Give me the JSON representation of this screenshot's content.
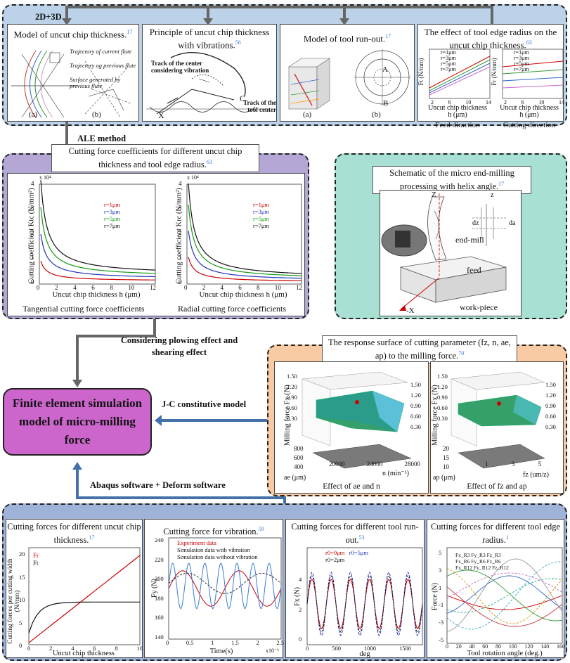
{
  "top_label": "2D+3D",
  "top_panels": [
    {
      "title": "Model of uncut chip thickness.",
      "ref": "17"
    },
    {
      "title": "Principle of uncut  chip thickness with vibrations.",
      "ref": "56"
    },
    {
      "title": "Model of tool run-out.",
      "ref": "17"
    },
    {
      "title": "The effect of tool edge radius on the  uncut chip thickness.",
      "ref": "63"
    }
  ],
  "p1": {
    "leg1": "Trajectory of current flute",
    "leg2": "Trajectory og previous flute",
    "leg3": "Surface generated by previous flute",
    "sub_a": "(a)",
    "sub_b": "(b)"
  },
  "p2": {
    "track_vib": "Track of the center considering vibration",
    "track_center": "Track of the tool center",
    "label_c": "C",
    "label_x": "X"
  },
  "p3": {
    "sub_a": "(a)",
    "sub_b": "(b)",
    "label_A": "A",
    "label_B": "B"
  },
  "p4": {
    "legend": [
      "r=1μm",
      "r=3μm",
      "r=5μm",
      "r=7μm"
    ],
    "ylabel1": "Ft (N/mm)",
    "ylabel2": "Fr (N/mm)",
    "xticks": [
      "2",
      "6",
      "10",
      "14"
    ],
    "xlabel": "Uncut chip thickness",
    "xlabel2": "h (μm)",
    "cap1": "Feed diraction",
    "cap2": "Cutting direction"
  },
  "ale_label": "ALE method",
  "coef": {
    "title": "Cutting force coefficients for different uncut chip thickness and tool edge radius.",
    "ref": "63",
    "left": {
      "ylabel": "Cutting coefficient Ktc (N/mm²)",
      "xlabel": "Uncut chip thickness h (μm)",
      "exp": "x 10⁴",
      "yticks": [
        "0",
        "1",
        "2",
        "3",
        "4"
      ],
      "xticks": [
        "0",
        "2",
        "4",
        "6",
        "8",
        "10",
        "12"
      ],
      "legend": [
        "r=1μm",
        "r=3μm",
        "r=5μm",
        "r=7μm"
      ],
      "cap": "Tangential cutting force coefficients"
    },
    "right": {
      "ylabel": "Cutting coefficient Krc (N/mm²)",
      "xlabel": "Uncut chip thickness h (μm)",
      "exp": "x 10⁴",
      "yticks": [
        "0",
        "1",
        "2",
        "3",
        "4"
      ],
      "xticks": [
        "0",
        "2",
        "4",
        "6",
        "8",
        "10",
        "12"
      ],
      "legend": [
        "r=1μm",
        "r=3μm",
        "r=5μm",
        "r=7μm"
      ],
      "cap": "Radial cutting force coefficients"
    }
  },
  "helix": {
    "title": "Schematic of the micro end-milling processing with helix angle.",
    "ref": "17",
    "z": "Z",
    "z2": "z",
    "dz": "dz",
    "da": "da",
    "endmill": "end-mill",
    "feed": "feed",
    "workpiece": "work-piece",
    "negx": "-X"
  },
  "plow_label": "Considering plowing effect and shearing effect",
  "response": {
    "title": "The response surface of cutting parameter (fz, n, ae, ap) to the milling force.",
    "ref": "70",
    "left": {
      "zlabel": "Milling force Fx (N)",
      "zticks": [
        "1.50",
        "1.20",
        "0.90",
        "0.60",
        "0.30"
      ],
      "zticks_r": [
        "1.50",
        "1.20",
        "0.90",
        "0.60",
        "0.30"
      ],
      "ae_label": "ae (μm)",
      "ae_ticks": [
        "800",
        "600",
        "400"
      ],
      "n_label": "n (min⁻¹)",
      "n_ticks": [
        "20000",
        "24000",
        "28000"
      ],
      "cap": "Effect of ae and n"
    },
    "right": {
      "zlabel": "Milling force Fx (N)",
      "zticks": [
        "1.50",
        "1.20",
        "0.90",
        "0.60",
        "0.30"
      ],
      "zticks_r": [
        "1.50",
        "1.20",
        "0.90",
        "0.60",
        "0.30"
      ],
      "ap_label": "ap (μm)",
      "ap_ticks": [
        "20",
        "15",
        "10"
      ],
      "fz_label": "fz (um/z)",
      "fz_ticks": [
        "1",
        "3",
        "5"
      ],
      "cap": "Effect of fz and ap"
    }
  },
  "jc_label": "J-C constitutive model",
  "center_box": "Finite element simulation model of micro-milling force",
  "abaqus_label": "Abaqus software + Deform software",
  "bottom_panels": [
    {
      "title": "Cutting forces  for different uncut chip thickness.",
      "ref": "17"
    },
    {
      "title": "Cutting force  for vibration.",
      "ref": "59"
    },
    {
      "title": "Cutting forces  for different tool run-out.",
      "ref": "53"
    },
    {
      "title": "Cutting forces  for different tool edge radius.",
      "ref": "1"
    }
  ],
  "b1": {
    "ylabel": "Cutting forces per cutting width (N/mm)",
    "xlabel": "Uncut chip thickness",
    "yticks": [
      "0",
      "5",
      "10",
      "15",
      "20"
    ],
    "xticks": [
      "0",
      "2",
      "4",
      "6",
      "8",
      "10"
    ],
    "legend": [
      "Fr",
      "Ft"
    ]
  },
  "b2": {
    "ylabel": "Fy (N)",
    "xlabel": "Time(s)",
    "yticks": [
      "140",
      "160",
      "180",
      "200",
      "220",
      "240"
    ],
    "xticks": [
      "0",
      "0.5",
      "1",
      "1.5",
      "2",
      "2.5"
    ],
    "exp": "x10⁻³",
    "legend": [
      "Experiment data",
      "Simulation data with vibration",
      "Simulation data without vibration"
    ]
  },
  "b3": {
    "ylabel": "Fx (N)",
    "xlabel": "deg",
    "yticks": [
      "0",
      "2",
      "4"
    ],
    "xticks": [
      "0",
      "500",
      "1000",
      "1500"
    ],
    "legend": [
      "r0=0μm",
      "r0=5μm",
      "r0=2μm"
    ]
  },
  "b4": {
    "ylabel": "Force (N)",
    "xlabel": "Tool rotation angle (deg.)",
    "yticks": [
      "5",
      "3",
      "1",
      "-1",
      "-3",
      "-5"
    ],
    "xticks": [
      "0",
      "20",
      "40",
      "60",
      "80",
      "100",
      "120",
      "140",
      "160"
    ],
    "legend": [
      "Fx_R3",
      "Fy_R3",
      "Fz_R3",
      "Fx_R6",
      "Fy_R6",
      "Fz_R6",
      "Fx_R12",
      "Fy_R12",
      "Fz_R12"
    ]
  },
  "colors": {
    "blue_bg": "#bcd2e8",
    "purple_bg": "#b4a7d6",
    "teal_bg": "#a8e0d4",
    "orange_bg": "#f8cba4",
    "magenta_box": "#cc66cc",
    "arrow_gray": "#666666",
    "arrow_blue": "#4472a8"
  }
}
